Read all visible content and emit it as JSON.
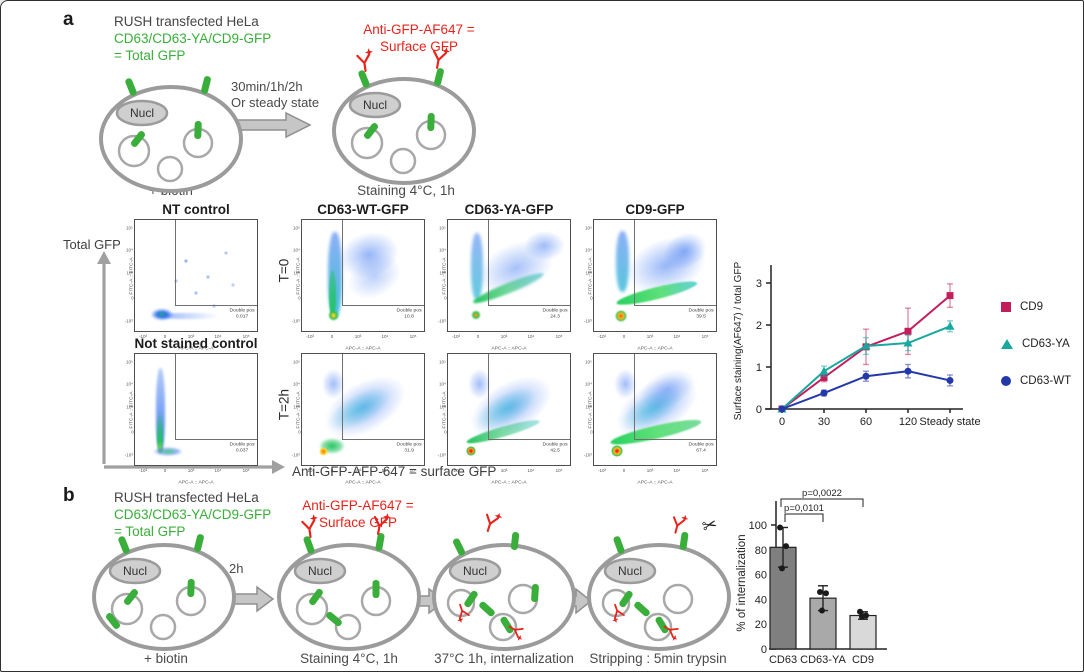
{
  "colors": {
    "gfp_green": "#3aae3a",
    "antibody_red": "#e8231c",
    "cd9_series": "#c21e5c",
    "cd63ya_series": "#18a8a0",
    "cd63wt_series": "#2438aa",
    "arrow_gray": "#c6c6c6"
  },
  "panel_a": {
    "label": "a",
    "cells_text": {
      "line1": "RUSH transfected HeLa",
      "line2": "CD63/CD63-YA/CD9-GFP",
      "line3": "= Total GFP"
    },
    "antibody_text": {
      "line1": "Anti-GFP-AF647 =",
      "line2": "Surface GFP"
    },
    "arrow_text": {
      "line1": "30min/1h/2h",
      "line2": "Or steady state"
    },
    "nucleus": "Nucl",
    "cell1_caption": "+ biotin",
    "cell2_caption": "Staining 4°C, 1h"
  },
  "flow": {
    "total_gfp_axis": "Total GFP",
    "surface_axis": "Anti-GFP-AFP-647 = surface GFP",
    "row_t0": "T=0",
    "row_t2h": "T=2h",
    "gate_label": "Double pos",
    "x_title": "APC-A :: APC-A",
    "y_title": "FITC-A :: FITC-A",
    "ticks_x": [
      "-10³",
      "0",
      "10³",
      "10⁴",
      "10⁵"
    ],
    "ticks_y": [
      "10⁵",
      "10⁴",
      "10³",
      "0",
      "-10³"
    ],
    "plots": {
      "nt": {
        "title": "NT control",
        "double_pos": "0.017"
      },
      "ns": {
        "title": "Not stained control",
        "double_pos": "0.037"
      },
      "wt_t0": {
        "title": "CD63-WT-GFP",
        "double_pos": "10.8"
      },
      "ya_t0": {
        "title": "CD63-YA-GFP",
        "double_pos": "24.3"
      },
      "cd9_t0": {
        "title": "CD9-GFP",
        "double_pos": "39.5"
      },
      "wt_t2": {
        "double_pos": "31.9"
      },
      "ya_t2": {
        "double_pos": "42.5"
      },
      "cd9_t2": {
        "double_pos": "67.4"
      }
    }
  },
  "panel_b": {
    "label": "b",
    "cells_text": {
      "line1": "RUSH transfected HeLa",
      "line2": "CD63/CD63-YA/CD9-GFP",
      "line3": "= Total GFP"
    },
    "antibody_text": {
      "line1": "Anti-GFP-AF647 =",
      "line2": "Surface GFP"
    },
    "arrow_label": "2h",
    "nucleus": "Nucl",
    "scissors_icon": "✂",
    "captions": [
      "+ biotin",
      "Staining 4°C, 1h",
      "37°C 1h, internalization",
      "Stripping : 5min trypsin"
    ]
  },
  "chart_data": [
    {
      "type": "line",
      "title": "",
      "x_categories": [
        "0",
        "30",
        "60",
        "120",
        "Steady state"
      ],
      "xlabel": "",
      "ylabel": "Surface staining(AF647) / total GFP",
      "ylim": [
        0,
        3
      ],
      "yticks": [
        0,
        1,
        2,
        3
      ],
      "grid": false,
      "legend_position": "right",
      "series": [
        {
          "name": "CD9",
          "marker": "square",
          "color": "#c21e5c",
          "values": [
            0,
            0.75,
            1.48,
            1.85,
            2.7
          ],
          "errors": [
            0.03,
            0.1,
            0.42,
            0.55,
            0.28
          ]
        },
        {
          "name": "CD63-YA",
          "marker": "triangle",
          "color": "#18a8a0",
          "values": [
            0,
            0.9,
            1.5,
            1.57,
            1.97
          ],
          "errors": [
            0.03,
            0.12,
            0.2,
            0.18,
            0.13
          ]
        },
        {
          "name": "CD63-WT",
          "marker": "circle",
          "color": "#2438aa",
          "values": [
            0,
            0.38,
            0.78,
            0.9,
            0.68
          ],
          "errors": [
            0.03,
            0.07,
            0.12,
            0.16,
            0.13
          ]
        }
      ]
    },
    {
      "type": "bar",
      "categories": [
        "CD63",
        "CD63-YA",
        "CD9"
      ],
      "values": [
        82,
        41,
        27
      ],
      "errors": [
        16,
        10,
        3
      ],
      "points": [
        [
          98,
          83,
          65
        ],
        [
          46,
          45,
          31
        ],
        [
          30,
          27,
          26
        ]
      ],
      "bar_colors": [
        "#7f7f7f",
        "#a9a9a9",
        "#d9d9d9"
      ],
      "xlabel": "",
      "ylabel": "% of internalization",
      "ylim": [
        0,
        100
      ],
      "yticks": [
        0,
        20,
        40,
        60,
        80,
        100
      ],
      "grid": false,
      "significance": [
        {
          "from": 0,
          "to": 1,
          "label": "p=0,0101"
        },
        {
          "from": 0,
          "to": 2,
          "label": "p=0,0022"
        }
      ]
    }
  ]
}
